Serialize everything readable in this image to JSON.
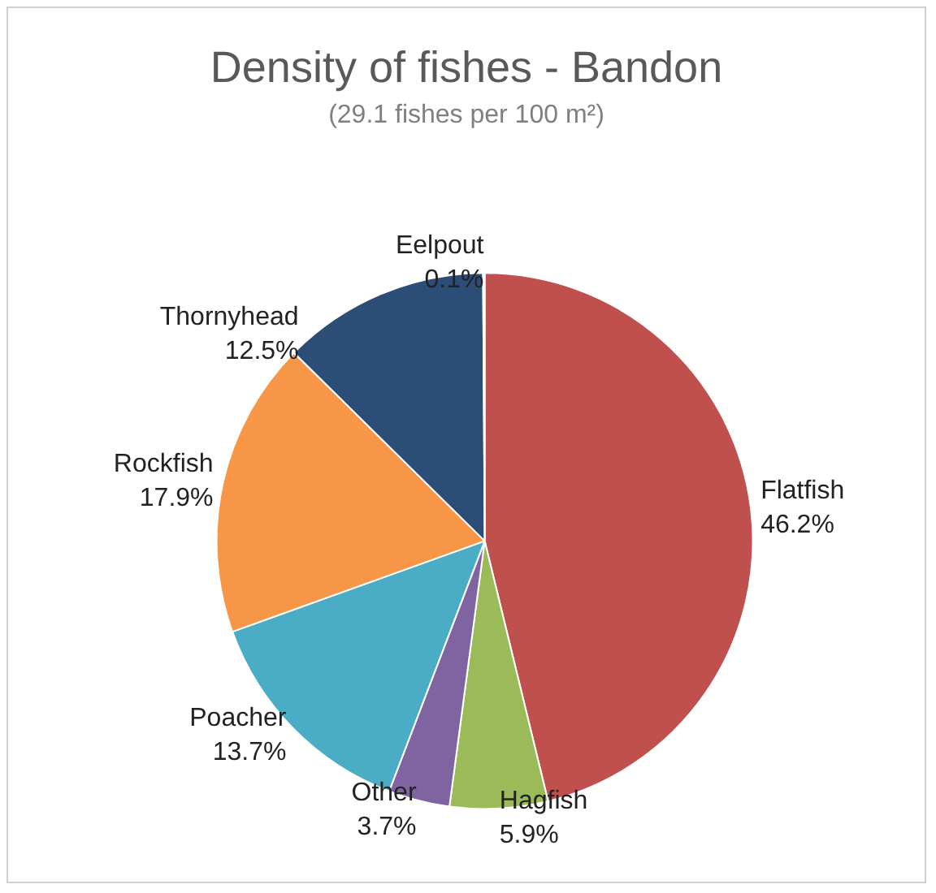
{
  "chart_data": {
    "type": "pie",
    "title": "Density of fishes - Bandon",
    "subtitle": "(29.1 fishes per 100 m²)",
    "categories": [
      "Flatfish",
      "Hagfish",
      "Other",
      "Poacher",
      "Rockfish",
      "Thornyhead",
      "Eelpout"
    ],
    "values": [
      46.2,
      5.9,
      3.7,
      13.7,
      17.9,
      12.5,
      0.1
    ],
    "value_labels": [
      "46.2%",
      "5.9%",
      "3.7%",
      "13.7%",
      "17.9%",
      "12.5%",
      "0.1%"
    ],
    "colors": [
      "#c0504d",
      "#9bbb59",
      "#8064a2",
      "#4bacc6",
      "#f79646",
      "#2c4d75",
      "#4f81bd"
    ],
    "legend": false
  }
}
